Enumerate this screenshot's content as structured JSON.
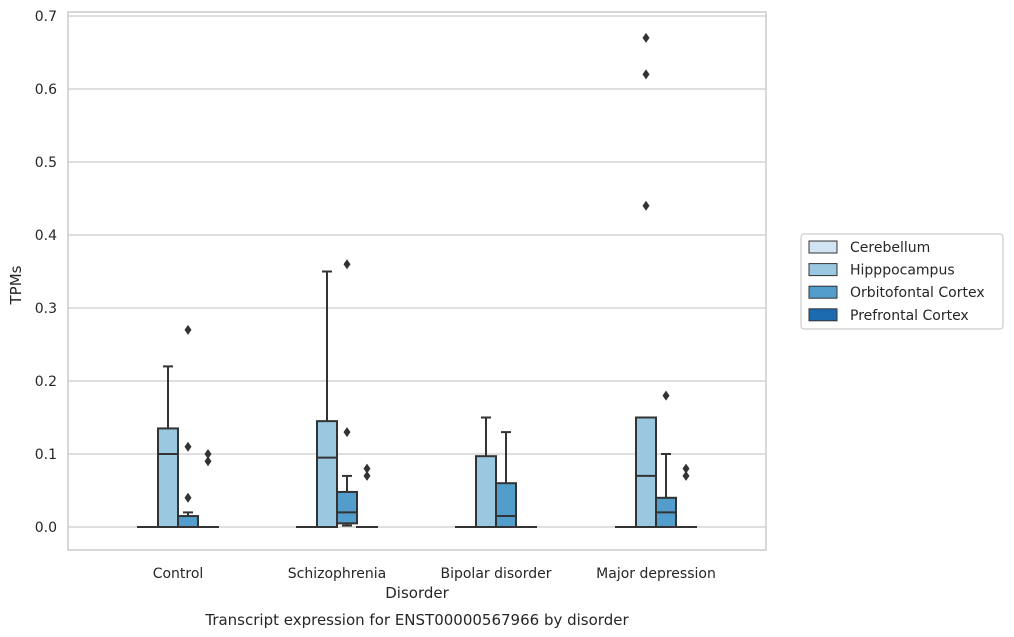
{
  "chart_data": {
    "type": "box",
    "xlabel": "Disorder",
    "ylabel": "TPMs",
    "caption": "Transcript expression for ENST00000567966 by disorder",
    "ylim": [
      -0.032,
      0.705
    ],
    "yticks": [
      "0.0",
      "0.1",
      "0.2",
      "0.3",
      "0.4",
      "0.5",
      "0.6",
      "0.7"
    ],
    "grid": "horizontal",
    "legend_position": "right",
    "categories": [
      "Control",
      "Schizophrenia",
      "Bipolar disorder",
      "Major depression"
    ],
    "series": [
      {
        "name": "Cerebellum",
        "color": "#d2e3f3",
        "boxes": [
          {
            "min": 0,
            "q1": 0,
            "median": 0,
            "q3": 0,
            "max": 0,
            "outliers": []
          },
          {
            "min": 0,
            "q1": 0,
            "median": 0,
            "q3": 0,
            "max": 0,
            "outliers": []
          },
          {
            "min": 0,
            "q1": 0,
            "median": 0,
            "q3": 0,
            "max": 0,
            "outliers": []
          },
          {
            "min": 0,
            "q1": 0,
            "median": 0,
            "q3": 0,
            "max": 0,
            "outliers": []
          }
        ]
      },
      {
        "name": "Hipppocampus",
        "color": "#9ac8e0",
        "boxes": [
          {
            "min": 0,
            "q1": 0,
            "median": 0.1,
            "q3": 0.135,
            "max": 0.22,
            "outliers": []
          },
          {
            "min": 0,
            "q1": 0,
            "median": 0.095,
            "q3": 0.145,
            "max": 0.35,
            "outliers": []
          },
          {
            "min": 0,
            "q1": 0,
            "median": 0.0,
            "q3": 0.097,
            "max": 0.15,
            "outliers": []
          },
          {
            "min": 0,
            "q1": 0,
            "median": 0.07,
            "q3": 0.15,
            "max": 0.15,
            "outliers": [
              0.44,
              0.62,
              0.67
            ]
          }
        ]
      },
      {
        "name": "Orbitofontal Cortex",
        "color": "#529dcc",
        "boxes": [
          {
            "min": 0,
            "q1": 0,
            "median": 0.0,
            "q3": 0.015,
            "max": 0.02,
            "outliers": [
              0.04,
              0.11,
              0.27
            ]
          },
          {
            "min": 0.002,
            "q1": 0.005,
            "median": 0.02,
            "q3": 0.048,
            "max": 0.07,
            "outliers": [
              0.13,
              0.36
            ]
          },
          {
            "min": 0,
            "q1": 0,
            "median": 0.015,
            "q3": 0.06,
            "max": 0.13,
            "outliers": []
          },
          {
            "min": 0,
            "q1": 0,
            "median": 0.02,
            "q3": 0.04,
            "max": 0.1,
            "outliers": [
              0.18
            ]
          }
        ]
      },
      {
        "name": "Prefrontal Cortex",
        "color": "#1c6aaf",
        "boxes": [
          {
            "min": 0,
            "q1": 0,
            "median": 0,
            "q3": 0,
            "max": 0,
            "outliers": [
              0.09,
              0.1
            ]
          },
          {
            "min": 0,
            "q1": 0,
            "median": 0,
            "q3": 0,
            "max": 0,
            "outliers": [
              0.07,
              0.08
            ]
          },
          {
            "min": 0,
            "q1": 0,
            "median": 0,
            "q3": 0,
            "max": 0,
            "outliers": []
          },
          {
            "min": 0,
            "q1": 0,
            "median": 0,
            "q3": 0,
            "max": 0,
            "outliers": [
              0.07,
              0.08
            ]
          }
        ]
      }
    ]
  },
  "styles": {
    "line_color": "#333333",
    "grid_color": "#cccccc",
    "frame_color": "#cccccc"
  }
}
